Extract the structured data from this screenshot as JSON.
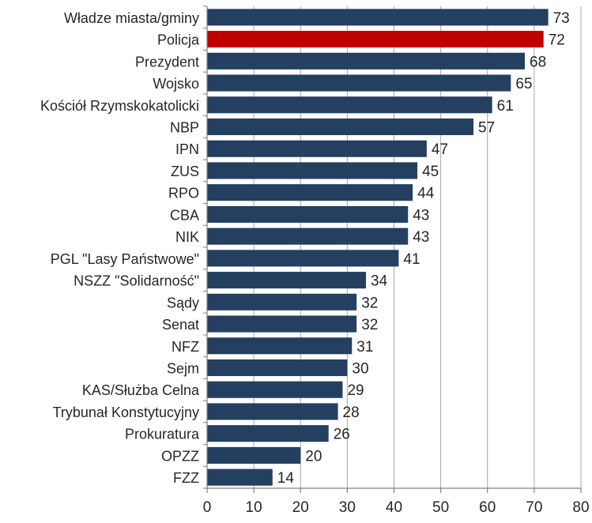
{
  "chart_data": {
    "type": "bar",
    "orientation": "horizontal",
    "categories": [
      "Władze miasta/gminy",
      "Policja",
      "Prezydent",
      "Wojsko",
      "Kościół Rzymskokatolicki",
      "NBP",
      "IPN",
      "ZUS",
      "RPO",
      "CBA",
      "NIK",
      "PGL \"Lasy Państwowe\"",
      "NSZZ \"Solidarność\"",
      "Sądy",
      "Senat",
      "NFZ",
      "Sejm",
      "KAS/Służba Celna",
      "Trybunał Konstytucyjny",
      "Prokuratura",
      "OPZZ",
      "FZZ"
    ],
    "values": [
      73,
      72,
      68,
      65,
      61,
      57,
      47,
      45,
      44,
      43,
      43,
      41,
      34,
      32,
      32,
      31,
      30,
      29,
      28,
      26,
      20,
      14
    ],
    "highlight_category": "Policja",
    "xlim": [
      0,
      80
    ],
    "xticks": [
      0,
      10,
      20,
      30,
      40,
      50,
      60,
      70,
      80
    ],
    "grid": "vertical",
    "data_labels": true,
    "title": "",
    "xlabel": "",
    "ylabel": "",
    "colors": {
      "bar": "#243f60",
      "highlight": "#c00000",
      "grid": "#a6a6a6",
      "axis": "#808080",
      "text": "#262626"
    }
  }
}
